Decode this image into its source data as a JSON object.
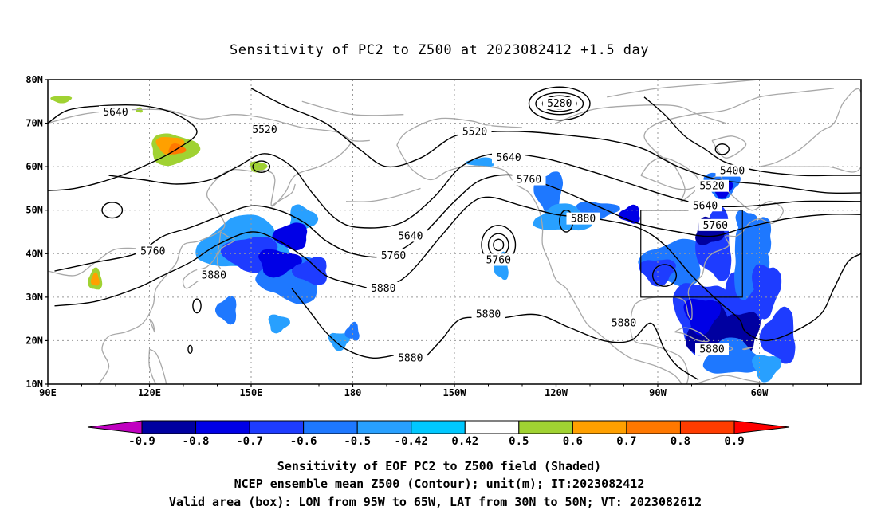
{
  "title": "Sensitivity of PC2 to Z500 at 2023082412 +1.5 day",
  "map": {
    "lat_ticks": [
      "80N",
      "70N",
      "60N",
      "50N",
      "40N",
      "30N",
      "20N",
      "10N"
    ],
    "lon_ticks": [
      "90E",
      "120E",
      "150E",
      "180",
      "150W",
      "120W",
      "90W",
      "60W"
    ],
    "contour_labels": [
      {
        "text": "5640",
        "lon": 110,
        "lat": 72.5
      },
      {
        "text": "5520",
        "lon": 154,
        "lat": 68.5
      },
      {
        "text": "5280",
        "lon": 241,
        "lat": 74.5
      },
      {
        "text": "5520",
        "lon": 216,
        "lat": 68
      },
      {
        "text": "5640",
        "lon": 226,
        "lat": 62
      },
      {
        "text": "5760",
        "lon": 232,
        "lat": 57
      },
      {
        "text": "5400",
        "lon": 292,
        "lat": 59
      },
      {
        "text": "5520",
        "lon": 286,
        "lat": 55.5
      },
      {
        "text": "5640",
        "lon": 284,
        "lat": 51
      },
      {
        "text": "5880",
        "lon": 248,
        "lat": 48
      },
      {
        "text": "5760",
        "lon": 287,
        "lat": 46.5
      },
      {
        "text": "5640",
        "lon": 197,
        "lat": 44
      },
      {
        "text": "5760",
        "lon": 192,
        "lat": 39.5
      },
      {
        "text": "5760",
        "lon": 121,
        "lat": 40.5
      },
      {
        "text": "5880",
        "lon": 139,
        "lat": 35
      },
      {
        "text": "5760",
        "lon": 223,
        "lat": 38.5
      },
      {
        "text": "5880",
        "lon": 189,
        "lat": 32
      },
      {
        "text": "5880",
        "lon": 220,
        "lat": 26
      },
      {
        "text": "5880",
        "lon": 260,
        "lat": 24
      },
      {
        "text": "5880",
        "lon": 286,
        "lat": 18
      },
      {
        "text": "5880",
        "lon": 197,
        "lat": 16
      }
    ],
    "valid_box": {
      "lon_min": 265,
      "lon_max": 295,
      "lat_min": 30,
      "lat_max": 50
    }
  },
  "colorbar": {
    "labels": [
      "-0.9",
      "-0.8",
      "-0.7",
      "-0.6",
      "-0.5",
      "-0.42",
      "0.42",
      "0.5",
      "0.6",
      "0.7",
      "0.8",
      "0.9"
    ],
    "colors": [
      "#c000c0",
      "#0000a0",
      "#0000e6",
      "#1e3cff",
      "#1e78ff",
      "#28a0ff",
      "#00c8ff",
      "#ffffff",
      "#a0d232",
      "#ffa000",
      "#ff7800",
      "#ff3c00",
      "#ff0000",
      "#f0a0c8"
    ]
  },
  "captions": [
    "Sensitivity of EOF PC2 to Z500 field (Shaded)",
    "NCEP ensemble mean Z500 (Contour); unit(m); IT:2023082412",
    "Valid area (box): LON from 95W to 65W, LAT from 30N to 50N; VT: 2023082612"
  ]
}
